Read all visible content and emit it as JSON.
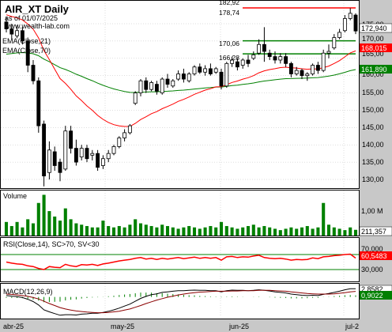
{
  "header": {
    "title": "AIR_XT Daily",
    "asof": "as of 01/07/2025",
    "site": "www.wealth-lab.com"
  },
  "colors": {
    "up": "#008000",
    "down": "#000000",
    "ema21": "#ff0000",
    "ema70": "#008000",
    "resistance": "#ff0000",
    "support": "#008000",
    "axis_panel": "#c0c0c0",
    "grid": "#bdbdbd"
  },
  "price_panel": {
    "indicator_labels": [
      "EMA(Close,21)",
      "EMA(Close,70)"
    ],
    "yticks": [
      "175,00",
      "170,00",
      "165,00",
      "160,00",
      "155,00",
      "150,00",
      "145,00",
      "140,00",
      "135,00",
      "130,00"
    ],
    "level_labels": [
      "182,92",
      "178,74",
      "170,06",
      "166,28"
    ],
    "last_labels": {
      "close": "172,940",
      "ema21": "168,015",
      "ema70": "161,890"
    }
  },
  "volume_panel": {
    "label": "Volume",
    "ytick": "1,00 M",
    "last_label": "211,357"
  },
  "rsi_panel": {
    "label": "RSI(Close,14), SC>70, SV<30",
    "yticks": [
      "70,000",
      "30,000"
    ],
    "last_label": "60,5483"
  },
  "macd_panel": {
    "label": "MACD(12,26,9)",
    "last_labels": [
      "2,8582",
      "0,9022"
    ]
  },
  "xaxis": {
    "labels": [
      "abr-25",
      "may-25",
      "jun-25",
      "jul-2"
    ]
  },
  "chart_data": {
    "type": "candlestick",
    "price_range": [
      126,
      182
    ],
    "candles": [
      {
        "o": 175.5,
        "h": 177.0,
        "c": 173.5,
        "l": 172.5
      },
      {
        "o": 173.5,
        "h": 175.0,
        "c": 172.0,
        "l": 170.5
      },
      {
        "o": 171.5,
        "h": 174.5,
        "c": 173.0,
        "l": 170.8
      },
      {
        "o": 173.0,
        "h": 174.0,
        "c": 170.0,
        "l": 169.0
      },
      {
        "o": 170.0,
        "h": 171.0,
        "c": 163.0,
        "l": 161.0
      },
      {
        "o": 163.0,
        "h": 164.5,
        "c": 158.5,
        "l": 157.5
      },
      {
        "o": 158.5,
        "h": 159.5,
        "c": 145.5,
        "l": 143.5
      },
      {
        "o": 146.0,
        "h": 147.0,
        "c": 131.0,
        "l": 128.0
      },
      {
        "o": 132.0,
        "h": 141.0,
        "c": 138.5,
        "l": 130.0
      },
      {
        "o": 138.0,
        "h": 139.5,
        "c": 134.0,
        "l": 132.5
      },
      {
        "o": 135.0,
        "h": 136.0,
        "c": 132.0,
        "l": 129.5
      },
      {
        "o": 133.0,
        "h": 145.5,
        "c": 144.0,
        "l": 132.5
      },
      {
        "o": 144.0,
        "h": 145.5,
        "c": 139.0,
        "l": 137.5
      },
      {
        "o": 139.0,
        "h": 141.5,
        "c": 135.0,
        "l": 134.0
      },
      {
        "o": 136.5,
        "h": 140.0,
        "c": 139.0,
        "l": 135.5
      },
      {
        "o": 139.0,
        "h": 140.0,
        "c": 136.0,
        "l": 135.0
      },
      {
        "o": 137.0,
        "h": 138.5,
        "c": 137.5,
        "l": 135.5
      },
      {
        "o": 137.5,
        "h": 138.5,
        "c": 133.5,
        "l": 132.5
      },
      {
        "o": 134.0,
        "h": 137.0,
        "c": 136.0,
        "l": 133.0
      },
      {
        "o": 136.0,
        "h": 138.5,
        "c": 137.5,
        "l": 135.0
      },
      {
        "o": 137.5,
        "h": 140.0,
        "c": 139.5,
        "l": 137.0
      },
      {
        "o": 139.5,
        "h": 142.5,
        "c": 142.0,
        "l": 139.0
      },
      {
        "o": 142.0,
        "h": 144.5,
        "c": 143.5,
        "l": 141.0
      },
      {
        "o": 143.5,
        "h": 146.0,
        "c": 145.5,
        "l": 143.0
      },
      {
        "o": 152.0,
        "h": 155.5,
        "c": 155.0,
        "l": 151.5
      },
      {
        "o": 155.0,
        "h": 159.0,
        "c": 158.5,
        "l": 154.0
      },
      {
        "o": 158.5,
        "h": 159.5,
        "c": 156.0,
        "l": 155.0
      },
      {
        "o": 156.0,
        "h": 158.5,
        "c": 158.0,
        "l": 155.5
      },
      {
        "o": 157.5,
        "h": 158.5,
        "c": 155.5,
        "l": 154.5
      },
      {
        "o": 155.0,
        "h": 159.5,
        "c": 159.0,
        "l": 154.5
      },
      {
        "o": 159.0,
        "h": 160.5,
        "c": 157.5,
        "l": 156.5
      },
      {
        "o": 157.0,
        "h": 159.0,
        "c": 158.5,
        "l": 156.5
      },
      {
        "o": 159.0,
        "h": 161.5,
        "c": 160.5,
        "l": 158.5
      },
      {
        "o": 160.5,
        "h": 162.0,
        "c": 159.0,
        "l": 158.0
      },
      {
        "o": 158.5,
        "h": 161.0,
        "c": 160.5,
        "l": 158.0
      },
      {
        "o": 160.5,
        "h": 163.0,
        "c": 162.5,
        "l": 160.0
      },
      {
        "o": 162.5,
        "h": 163.5,
        "c": 161.0,
        "l": 160.5
      },
      {
        "o": 161.0,
        "h": 163.0,
        "c": 162.0,
        "l": 160.0
      },
      {
        "o": 162.0,
        "h": 163.5,
        "c": 160.5,
        "l": 160.0
      },
      {
        "o": 161.0,
        "h": 162.5,
        "c": 162.0,
        "l": 160.5
      },
      {
        "o": 161.0,
        "h": 162.0,
        "c": 157.0,
        "l": 156.0
      },
      {
        "o": 157.0,
        "h": 164.0,
        "c": 163.5,
        "l": 156.5
      },
      {
        "o": 163.5,
        "h": 165.5,
        "c": 164.5,
        "l": 162.5
      },
      {
        "o": 164.0,
        "h": 165.0,
        "c": 162.5,
        "l": 161.5
      },
      {
        "o": 163.0,
        "h": 165.0,
        "c": 164.5,
        "l": 162.0
      },
      {
        "o": 164.5,
        "h": 166.0,
        "c": 163.5,
        "l": 162.5
      },
      {
        "o": 165.0,
        "h": 167.0,
        "c": 166.0,
        "l": 164.5
      },
      {
        "o": 166.5,
        "h": 170.5,
        "c": 169.0,
        "l": 166.0
      },
      {
        "o": 169.0,
        "h": 174.0,
        "c": 167.0,
        "l": 164.0
      },
      {
        "o": 166.5,
        "h": 167.5,
        "c": 165.5,
        "l": 164.5
      },
      {
        "o": 165.5,
        "h": 167.0,
        "c": 164.5,
        "l": 163.5
      },
      {
        "o": 164.5,
        "h": 166.5,
        "c": 165.5,
        "l": 163.5
      },
      {
        "o": 165.5,
        "h": 166.5,
        "c": 163.5,
        "l": 162.5
      },
      {
        "o": 163.5,
        "h": 164.0,
        "c": 160.5,
        "l": 159.5
      },
      {
        "o": 160.5,
        "h": 162.5,
        "c": 161.5,
        "l": 160.0
      },
      {
        "o": 161.5,
        "h": 162.0,
        "c": 160.0,
        "l": 159.0
      },
      {
        "o": 160.0,
        "h": 161.0,
        "c": 160.5,
        "l": 158.5
      },
      {
        "o": 160.5,
        "h": 163.5,
        "c": 163.0,
        "l": 160.0
      },
      {
        "o": 163.0,
        "h": 164.0,
        "c": 161.5,
        "l": 160.5
      },
      {
        "o": 161.5,
        "h": 167.5,
        "c": 166.5,
        "l": 161.0
      },
      {
        "o": 166.5,
        "h": 169.0,
        "c": 167.0,
        "l": 165.0
      },
      {
        "o": 168.0,
        "h": 172.0,
        "c": 171.0,
        "l": 167.5
      },
      {
        "o": 171.0,
        "h": 173.5,
        "c": 172.5,
        "l": 170.5
      },
      {
        "o": 173.0,
        "h": 177.5,
        "c": 176.5,
        "l": 172.5
      },
      {
        "o": 176.5,
        "h": 179.5,
        "c": 178.0,
        "l": 176.0
      },
      {
        "o": 177.5,
        "h": 178.0,
        "c": 172.9,
        "l": 172.0
      }
    ],
    "ema21_last": 168.015,
    "ema70_last": 161.89,
    "resistance": 178.74,
    "support_levels": [
      170.06,
      166.28
    ],
    "volume": [
      0.5,
      0.35,
      0.5,
      0.3,
      0.6,
      0.45,
      1.2,
      1.5,
      0.9,
      0.7,
      0.55,
      1.0,
      0.6,
      0.45,
      0.4,
      0.35,
      0.3,
      0.3,
      0.55,
      0.35,
      0.3,
      0.35,
      0.3,
      0.4,
      0.6,
      0.45,
      0.4,
      0.35,
      0.3,
      0.4,
      0.35,
      0.3,
      0.25,
      0.3,
      0.35,
      0.3,
      0.25,
      0.3,
      0.35,
      0.3,
      0.5,
      0.35,
      0.3,
      0.25,
      0.3,
      0.35,
      0.4,
      0.3,
      0.35,
      0.3,
      0.25,
      0.2,
      0.25,
      0.3,
      0.25,
      0.3,
      0.35,
      0.25,
      0.3,
      1.2,
      0.4,
      0.3,
      0.25,
      0.2,
      0.3,
      0.211
    ],
    "volume_max": 1.6,
    "rsi": [
      50,
      47,
      45,
      44,
      40,
      38,
      33,
      30,
      38,
      36,
      35,
      44,
      40,
      38,
      43,
      42,
      44,
      41,
      45,
      47,
      50,
      53,
      55,
      57,
      60,
      62,
      58,
      60,
      57,
      60,
      58,
      60,
      62,
      59,
      61,
      63,
      60,
      62,
      60,
      62,
      55,
      64,
      65,
      62,
      64,
      63,
      66,
      68,
      62,
      60,
      59,
      60,
      58,
      55,
      57,
      56,
      57,
      61,
      59,
      64,
      65,
      67,
      68,
      70,
      71,
      60.55
    ],
    "macd": [
      0.5,
      0.3,
      0.1,
      -0.2,
      -0.8,
      -1.6,
      -2.8,
      -4.5,
      -5.2,
      -5.8,
      -6.4,
      -6.2,
      -6.2,
      -6.3,
      -6.0,
      -5.9,
      -5.7,
      -5.7,
      -5.4,
      -5.0,
      -4.5,
      -3.9,
      -3.2,
      -2.5,
      -1.5,
      -0.5,
      0.2,
      0.8,
      1.1,
      1.6,
      1.8,
      2.0,
      2.2,
      2.2,
      2.3,
      2.4,
      2.3,
      2.3,
      2.2,
      2.2,
      1.8,
      2.2,
      2.4,
      2.3,
      2.3,
      2.2,
      2.3,
      2.5,
      2.3,
      2.1,
      1.8,
      1.6,
      1.4,
      1.0,
      0.8,
      0.6,
      0.5,
      0.6,
      0.5,
      0.9,
      1.2,
      1.6,
      2.0,
      2.5,
      2.9,
      2.86
    ],
    "macd_signal": [
      1.0,
      0.9,
      0.7,
      0.5,
      0.2,
      -0.2,
      -0.7,
      -1.5,
      -2.3,
      -3.0,
      -3.7,
      -4.2,
      -4.6,
      -4.9,
      -5.1,
      -5.3,
      -5.4,
      -5.5,
      -5.5,
      -5.4,
      -5.2,
      -5.0,
      -4.6,
      -4.2,
      -3.6,
      -3.0,
      -2.3,
      -1.7,
      -1.1,
      -0.6,
      -0.1,
      0.3,
      0.7,
      1.0,
      1.3,
      1.5,
      1.7,
      1.8,
      1.9,
      2.0,
      2.0,
      2.0,
      2.1,
      2.1,
      2.2,
      2.2,
      2.2,
      2.3,
      2.3,
      2.3,
      2.2,
      2.1,
      2.0,
      1.8,
      1.6,
      1.4,
      1.2,
      1.1,
      1.0,
      1.0,
      1.0,
      1.1,
      1.3,
      1.5,
      1.8,
      1.96
    ],
    "macd_range": [
      -7,
      3.5
    ]
  }
}
